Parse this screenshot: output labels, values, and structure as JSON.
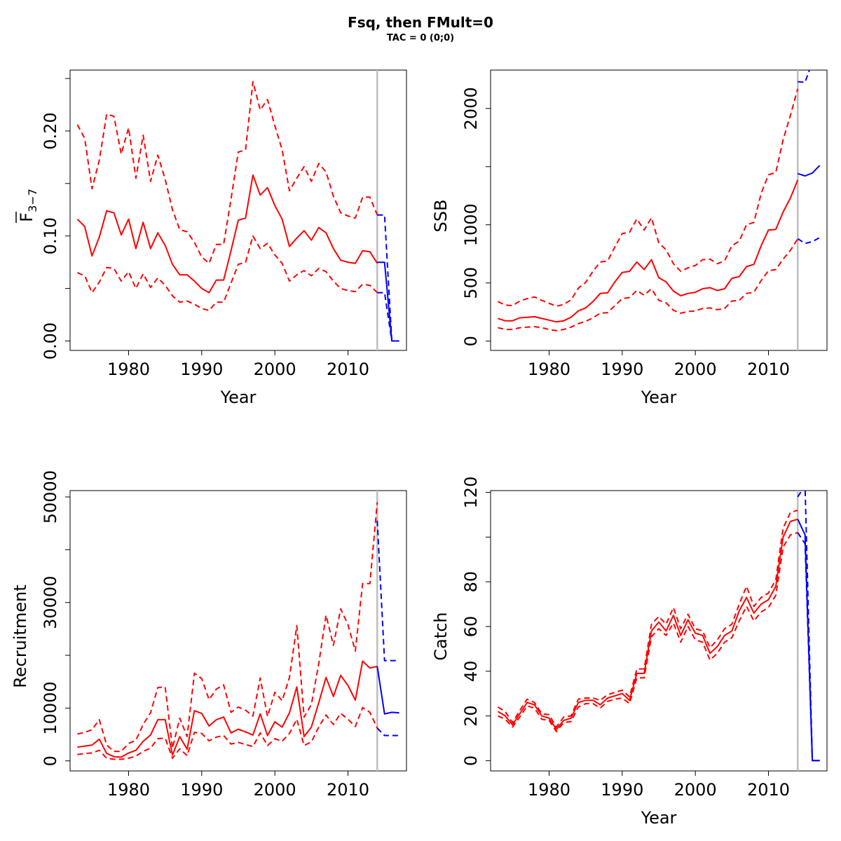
{
  "title": "Fsq, then FMult=0",
  "subtitle": "TAC = 0 (0;0)",
  "colors": {
    "history": "#ff0000",
    "forecast": "#0000ff",
    "divider": "#bebebe"
  },
  "chart_data": [
    {
      "id": "fbar",
      "type": "line",
      "xlabel": "Year",
      "ylabel_main": "F",
      "ylabel_sub": "3−7",
      "xlim": [
        1972,
        2018
      ],
      "ylim": [
        -0.009,
        0.258
      ],
      "xticks": [
        1980,
        1990,
        2000,
        2010
      ],
      "xtick_labels": [
        "1980",
        "1990",
        "2000",
        "2010"
      ],
      "yticks": [
        0,
        0.05,
        0.1,
        0.15,
        0.2,
        0.25
      ],
      "ytick_labels": [
        "0.00",
        "",
        "0.10",
        "",
        "0.20",
        ""
      ],
      "divider_year": 2014,
      "history": {
        "x": [
          1973,
          1974,
          1975,
          1976,
          1977,
          1978,
          1979,
          1980,
          1981,
          1982,
          1983,
          1984,
          1985,
          1986,
          1987,
          1988,
          1989,
          1990,
          1991,
          1992,
          1993,
          1994,
          1995,
          1996,
          1997,
          1998,
          1999,
          2000,
          2001,
          2002,
          2003,
          2004,
          2005,
          2006,
          2007,
          2008,
          2009,
          2010,
          2011,
          2012,
          2013,
          2014
        ],
        "estimate": [
          0.116,
          0.109,
          0.081,
          0.099,
          0.124,
          0.122,
          0.101,
          0.116,
          0.088,
          0.113,
          0.088,
          0.103,
          0.091,
          0.073,
          0.063,
          0.063,
          0.057,
          0.05,
          0.046,
          0.058,
          0.058,
          0.086,
          0.115,
          0.117,
          0.158,
          0.139,
          0.146,
          0.129,
          0.116,
          0.09,
          0.098,
          0.105,
          0.096,
          0.108,
          0.103,
          0.088,
          0.077,
          0.075,
          0.074,
          0.086,
          0.085,
          0.074
        ],
        "upper": [
          0.206,
          0.193,
          0.145,
          0.172,
          0.216,
          0.214,
          0.178,
          0.203,
          0.155,
          0.196,
          0.152,
          0.177,
          0.154,
          0.125,
          0.106,
          0.104,
          0.094,
          0.08,
          0.074,
          0.092,
          0.092,
          0.135,
          0.18,
          0.182,
          0.247,
          0.22,
          0.23,
          0.205,
          0.182,
          0.143,
          0.155,
          0.166,
          0.152,
          0.169,
          0.161,
          0.138,
          0.122,
          0.119,
          0.117,
          0.137,
          0.137,
          0.12
        ],
        "lower": [
          0.065,
          0.062,
          0.046,
          0.056,
          0.07,
          0.069,
          0.057,
          0.066,
          0.05,
          0.064,
          0.051,
          0.06,
          0.053,
          0.043,
          0.037,
          0.038,
          0.035,
          0.031,
          0.029,
          0.037,
          0.037,
          0.055,
          0.073,
          0.075,
          0.1,
          0.088,
          0.093,
          0.082,
          0.074,
          0.057,
          0.063,
          0.067,
          0.062,
          0.069,
          0.066,
          0.057,
          0.05,
          0.048,
          0.047,
          0.054,
          0.053,
          0.046
        ]
      },
      "forecast": {
        "x": [
          2014,
          2015,
          2016,
          2017
        ],
        "estimate": [
          0.075,
          0.075,
          0.0,
          0.0
        ],
        "upper": [
          0.12,
          0.12,
          0.0,
          0.0
        ],
        "lower": [
          0.046,
          0.046,
          0.0,
          0.0
        ]
      }
    },
    {
      "id": "ssb",
      "type": "line",
      "xlabel": "Year",
      "ylabel_main": "SSB",
      "ylabel_sub": "",
      "xlim": [
        1972,
        2018
      ],
      "ylim": [
        -80,
        2330
      ],
      "xticks": [
        1980,
        1990,
        2000,
        2010
      ],
      "xtick_labels": [
        "1980",
        "1990",
        "2000",
        "2010"
      ],
      "yticks": [
        0,
        500,
        1000,
        1500,
        2000
      ],
      "ytick_labels": [
        "0",
        "500",
        "1000",
        "",
        "2000"
      ],
      "divider_year": 2014,
      "history": {
        "x": [
          1973,
          1974,
          1975,
          1976,
          1977,
          1978,
          1979,
          1980,
          1981,
          1982,
          1983,
          1984,
          1985,
          1986,
          1987,
          1988,
          1989,
          1990,
          1991,
          1992,
          1993,
          1994,
          1995,
          1996,
          1997,
          1998,
          1999,
          2000,
          2001,
          2002,
          2003,
          2004,
          2005,
          2006,
          2007,
          2008,
          2009,
          2010,
          2011,
          2012,
          2013,
          2014
        ],
        "estimate": [
          195,
          175,
          175,
          200,
          205,
          210,
          195,
          180,
          165,
          175,
          205,
          260,
          285,
          340,
          410,
          415,
          510,
          590,
          600,
          680,
          615,
          700,
          545,
          510,
          430,
          390,
          410,
          420,
          450,
          460,
          435,
          450,
          540,
          555,
          640,
          660,
          820,
          955,
          960,
          1110,
          1230,
          1385
        ],
        "upper": [
          340,
          310,
          305,
          345,
          365,
          380,
          350,
          325,
          300,
          315,
          355,
          455,
          505,
          600,
          680,
          690,
          810,
          925,
          935,
          1050,
          955,
          1060,
          845,
          785,
          665,
          600,
          630,
          650,
          700,
          705,
          665,
          690,
          820,
          860,
          1000,
          1020,
          1270,
          1430,
          1450,
          1730,
          1940,
          2170
        ],
        "lower": [
          115,
          100,
          100,
          115,
          120,
          125,
          115,
          100,
          90,
          100,
          120,
          150,
          170,
          200,
          240,
          245,
          305,
          365,
          375,
          435,
          395,
          450,
          350,
          330,
          265,
          240,
          255,
          260,
          280,
          285,
          270,
          280,
          345,
          350,
          410,
          420,
          520,
          605,
          615,
          705,
          780,
          880
        ]
      },
      "forecast": {
        "x": [
          2014,
          2015,
          2016,
          2017
        ],
        "estimate": [
          1440,
          1420,
          1445,
          1510
        ],
        "upper": [
          2230,
          2225,
          2400,
          2550
        ],
        "lower": [
          880,
          840,
          855,
          890
        ]
      }
    },
    {
      "id": "recruitment",
      "type": "line",
      "xlabel": "",
      "ylabel_main": "Recruitment",
      "ylabel_sub": "",
      "xlim": [
        1972,
        2018
      ],
      "ylim": [
        -1900,
        51200
      ],
      "xticks": [
        1980,
        1990,
        2000,
        2010
      ],
      "xtick_labels": [
        "1980",
        "1990",
        "2000",
        "2010"
      ],
      "yticks": [
        0,
        10000,
        20000,
        30000,
        40000,
        50000
      ],
      "ytick_labels": [
        "0",
        "10000",
        "",
        "30000",
        "",
        "50000"
      ],
      "divider_year": 2014,
      "history": {
        "x": [
          1973,
          1974,
          1975,
          1976,
          1977,
          1978,
          1979,
          1980,
          1981,
          1982,
          1983,
          1984,
          1985,
          1986,
          1987,
          1988,
          1989,
          1990,
          1991,
          1992,
          1993,
          1994,
          1995,
          1996,
          1997,
          1998,
          1999,
          2000,
          2001,
          2002,
          2003,
          2004,
          2005,
          2006,
          2007,
          2008,
          2009,
          2010,
          2011,
          2012,
          2013,
          2014
        ],
        "estimate": [
          2600,
          2800,
          3000,
          4100,
          1400,
          800,
          700,
          1500,
          2000,
          3700,
          4900,
          7800,
          7800,
          1100,
          4600,
          2200,
          9500,
          9000,
          6600,
          7800,
          8300,
          5300,
          6000,
          5500,
          4900,
          8900,
          4800,
          7400,
          6400,
          9100,
          14000,
          4600,
          6400,
          11000,
          15800,
          12200,
          16200,
          14300,
          11500,
          18900,
          17600,
          17900
        ],
        "upper": [
          5100,
          5400,
          5900,
          7800,
          3000,
          1800,
          1800,
          3300,
          3900,
          6900,
          9100,
          13900,
          14000,
          2400,
          8100,
          4600,
          16600,
          15600,
          11600,
          13600,
          14400,
          9200,
          10200,
          9600,
          8500,
          15700,
          8400,
          13000,
          11400,
          15800,
          25600,
          8300,
          10700,
          18400,
          27600,
          21900,
          28800,
          25800,
          20800,
          33600,
          33600,
          49000
        ],
        "lower": [
          1200,
          1400,
          1500,
          2000,
          500,
          300,
          300,
          500,
          900,
          1800,
          2400,
          4200,
          4300,
          500,
          2300,
          1000,
          5400,
          5200,
          3800,
          4500,
          4800,
          3200,
          3500,
          3100,
          2700,
          5300,
          2900,
          4200,
          3700,
          5200,
          7900,
          2900,
          3600,
          6400,
          8700,
          6900,
          9000,
          7900,
          6500,
          10100,
          9200,
          6200
        ]
      },
      "forecast": {
        "x": [
          2014,
          2015,
          2016,
          2017
        ],
        "estimate": [
          17900,
          8900,
          9200,
          9100
        ],
        "upper": [
          45500,
          19000,
          19000,
          19000
        ],
        "lower": [
          6200,
          4800,
          4800,
          4800
        ]
      }
    },
    {
      "id": "catch",
      "type": "line",
      "xlabel": "Year",
      "ylabel_main": "Catch",
      "ylabel_sub": "",
      "xlim": [
        1972,
        2018
      ],
      "ylim": [
        -4.6,
        120.8
      ],
      "xticks": [
        1980,
        1990,
        2000,
        2010
      ],
      "xtick_labels": [
        "1980",
        "1990",
        "2000",
        "2010"
      ],
      "yticks": [
        0,
        20,
        40,
        60,
        80,
        100,
        120
      ],
      "ytick_labels": [
        "0",
        "20",
        "40",
        "60",
        "80",
        "",
        "120"
      ],
      "divider_year": 2014,
      "history": {
        "x": [
          1973,
          1974,
          1975,
          1976,
          1977,
          1978,
          1979,
          1980,
          1981,
          1982,
          1983,
          1984,
          1985,
          1986,
          1987,
          1988,
          1989,
          1990,
          1991,
          1992,
          1993,
          1994,
          1995,
          1996,
          1997,
          1998,
          1999,
          2000,
          2001,
          2002,
          2003,
          2004,
          2005,
          2006,
          2007,
          2008,
          2009,
          2010,
          2011,
          2012,
          2013,
          2014
        ],
        "estimate": [
          22,
          20,
          16,
          21,
          26,
          25,
          20,
          19,
          14,
          18,
          19,
          26,
          27,
          27,
          25,
          28,
          29,
          30,
          27,
          39,
          39,
          58,
          62,
          58,
          65,
          56,
          63,
          57,
          56,
          48,
          51,
          56,
          58,
          67,
          73,
          66,
          70,
          72,
          78,
          100,
          107,
          108
        ],
        "upper": [
          24,
          22,
          17,
          22.5,
          27.5,
          26,
          21,
          20.5,
          15,
          19.5,
          20,
          27.5,
          28,
          28,
          27,
          29.5,
          30.5,
          31.5,
          28.5,
          41,
          41,
          61,
          64.5,
          61,
          68.5,
          59,
          65.5,
          59,
          58,
          50.5,
          54,
          59,
          61,
          70,
          78,
          69,
          73,
          75,
          81,
          104,
          111,
          112
        ],
        "lower": [
          20,
          18.5,
          15,
          19.5,
          24.5,
          23.5,
          18.5,
          18,
          13,
          17,
          17.5,
          24,
          25.5,
          25.5,
          23.5,
          26.5,
          27.5,
          28,
          25.5,
          37,
          37,
          55.5,
          59,
          56,
          61.5,
          53,
          60,
          54,
          53,
          45,
          48,
          53,
          55,
          62.5,
          69,
          62.5,
          66.5,
          68.5,
          74,
          95.5,
          101,
          102
        ]
      },
      "forecast": {
        "x": [
          2014,
          2015,
          2016,
          2017
        ],
        "estimate": [
          108,
          101,
          0,
          0
        ],
        "upper": [
          118,
          123,
          0,
          0
        ],
        "lower": [
          102,
          97,
          0,
          0
        ]
      }
    }
  ]
}
